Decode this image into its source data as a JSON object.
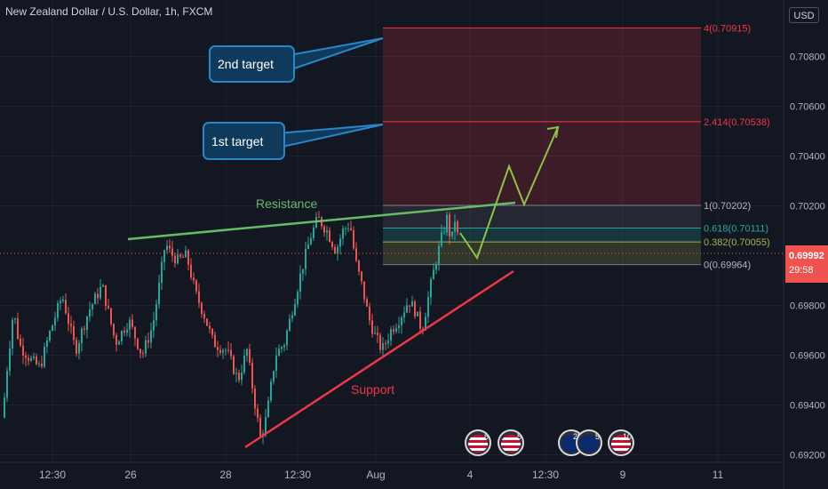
{
  "header": {
    "symbol_title": "New Zealand Dollar / U.S. Dollar, 1h, FXCM",
    "currency": "USD"
  },
  "annotations": {
    "target2": "2nd target",
    "target1": "1st target",
    "resistance": "Resistance",
    "support": "Support"
  },
  "price_axis": {
    "ticks": [
      "0.70800",
      "0.70600",
      "0.70400",
      "0.70200",
      "0.69800",
      "0.69600",
      "0.69400",
      "0.69200"
    ],
    "current_price": "0.69992",
    "countdown": "29:58"
  },
  "time_axis": {
    "ticks": [
      "12:30",
      "26",
      "28",
      "12:30",
      "Aug",
      "4",
      "12:30",
      "9",
      "11"
    ]
  },
  "fibonacci": [
    {
      "label": "4(0.70915)",
      "price": 0.70915
    },
    {
      "label": "2.414(0.70538)",
      "price": 0.70538
    },
    {
      "label": "1(0.70202)",
      "price": 0.70202
    },
    {
      "label": "0.618(0.70111)",
      "price": 0.70111
    },
    {
      "label": "0.382(0.70055)",
      "price": 0.70055
    },
    {
      "label": "0(0.69964)",
      "price": 0.69964
    }
  ],
  "events": [
    {
      "icon": "us-flag-icon",
      "count": "8"
    },
    {
      "icon": "us-flag-icon",
      "count": "5"
    },
    {
      "icon": "nz-flag-icon",
      "count": "29"
    },
    {
      "icon": "nz-flag-icon",
      "count": "5"
    },
    {
      "icon": "us-flag-icon",
      "count": "10"
    }
  ],
  "colors": {
    "background": "#131722",
    "up": "#26a69a",
    "down": "#ef5350",
    "resistance": "#66bb6a",
    "support": "#f23645",
    "projection": "#8bc34a",
    "fib_red": "#f23645",
    "fib_green": "#26a69a",
    "fib_olive": "#a8b24a"
  },
  "chart_data": {
    "type": "candlestick",
    "title": "New Zealand Dollar / U.S. Dollar, 1h, FXCM",
    "ylim": [
      0.6915,
      0.7098
    ],
    "path": [
      [
        0,
        0.6923
      ],
      [
        8,
        0.6955
      ],
      [
        15,
        0.6978
      ],
      [
        22,
        0.6964
      ],
      [
        35,
        0.6958
      ],
      [
        45,
        0.6955
      ],
      [
        55,
        0.6968
      ],
      [
        70,
        0.6984
      ],
      [
        85,
        0.6962
      ],
      [
        100,
        0.6978
      ],
      [
        115,
        0.6988
      ],
      [
        130,
        0.6965
      ],
      [
        145,
        0.6974
      ],
      [
        160,
        0.696
      ],
      [
        172,
        0.6972
      ],
      [
        180,
        0.699
      ],
      [
        186,
        0.7005
      ],
      [
        192,
        0.7001
      ],
      [
        200,
        0.6998
      ],
      [
        210,
        0.7
      ],
      [
        220,
        0.6985
      ],
      [
        230,
        0.6976
      ],
      [
        240,
        0.6965
      ],
      [
        255,
        0.6962
      ],
      [
        268,
        0.695
      ],
      [
        278,
        0.6962
      ],
      [
        285,
        0.6945
      ],
      [
        293,
        0.6927
      ],
      [
        300,
        0.6935
      ],
      [
        310,
        0.696
      ],
      [
        320,
        0.6965
      ],
      [
        330,
        0.698
      ],
      [
        340,
        0.6995
      ],
      [
        350,
        0.7008
      ],
      [
        358,
        0.7015
      ],
      [
        368,
        0.701
      ],
      [
        378,
        0.7002
      ],
      [
        386,
        0.701
      ],
      [
        394,
        0.7013
      ],
      [
        400,
        0.6998
      ],
      [
        408,
        0.6987
      ],
      [
        415,
        0.6975
      ],
      [
        422,
        0.6968
      ],
      [
        430,
        0.6962
      ],
      [
        440,
        0.697
      ],
      [
        450,
        0.6975
      ],
      [
        460,
        0.6982
      ],
      [
        467,
        0.6978
      ],
      [
        475,
        0.697
      ],
      [
        482,
        0.6983
      ],
      [
        490,
        0.6997
      ],
      [
        497,
        0.7007
      ],
      [
        503,
        0.7015
      ],
      [
        508,
        0.7005
      ],
      [
        513,
        0.7017
      ],
      [
        517,
        0.6999
      ]
    ]
  }
}
